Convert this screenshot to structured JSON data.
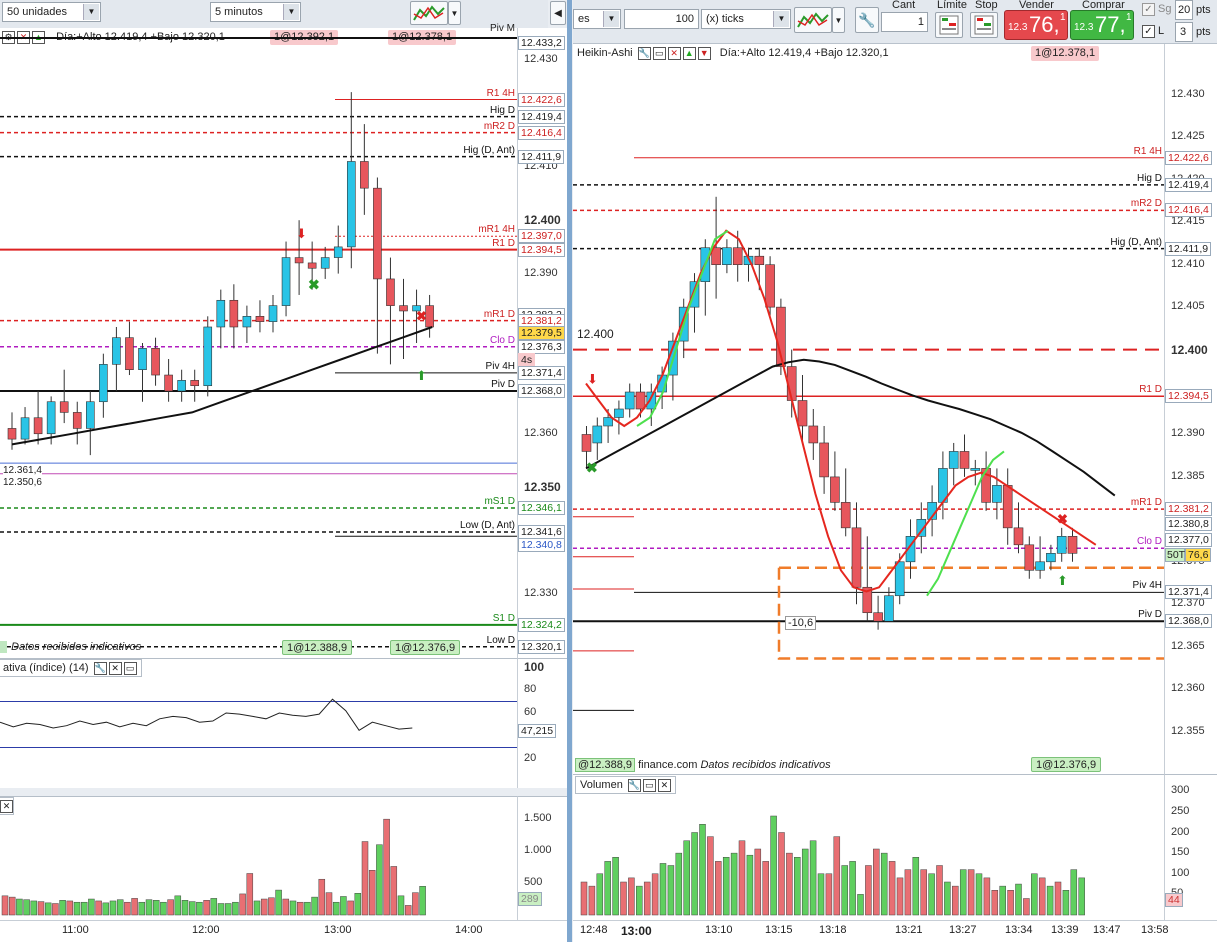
{
  "left_toolbar": {
    "quantity_select": "50 unidades",
    "timeframe_select": "5 minutos"
  },
  "right_toolbar": {
    "partial_select": "es",
    "ticks_value": "100",
    "ticks_select": "(x) ticks",
    "cant_label": "Cant",
    "cant_value": "1",
    "limit_label": "Límite",
    "stop_label": "Stop",
    "sell_label": "Vender",
    "sell_small": "12.3",
    "sell_big": "76,",
    "sell_frac": "1",
    "buy_label": "Comprar",
    "buy_small": "12.3",
    "buy_big": "77,",
    "buy_frac": "1",
    "sg_label": "Sg",
    "pts1_value": "20",
    "pts1_unit": "pts",
    "l_label": "L",
    "pts2_value": "3",
    "pts2_unit": "pts"
  },
  "left_chart": {
    "header_text": "Día:+Alto 12.419,4 +Bajo 12.320,1",
    "pill_a": "1@12.392,1",
    "pill_b": "1@12.378,1",
    "footer_note": "Datos recibidos indicativos",
    "pill_c": "1@12.388,9",
    "pill_d": "1@12.376,9",
    "small_top_label": "Piv M",
    "old_level_a": "12.361,4",
    "old_level_b": "12.350,6",
    "level_labels": [
      {
        "text": "R1 4H",
        "color": "#cc1f1f"
      },
      {
        "text": "Hig D",
        "color": "#111"
      },
      {
        "text": "mR2 D",
        "color": "#cc1f1f"
      },
      {
        "text": "Hig (D, Ant)",
        "color": "#111"
      },
      {
        "text": "mR1 4H",
        "color": "#cc1f1f"
      },
      {
        "text": "R1 D",
        "color": "#cc1f1f"
      },
      {
        "text": "mR1 D",
        "color": "#cc1f1f"
      },
      {
        "text": "Clo D",
        "color": "#b01cc0"
      },
      {
        "text": "Piv 4H",
        "color": "#111"
      },
      {
        "text": "Piv D",
        "color": "#111"
      },
      {
        "text": "mS1 D",
        "color": "#1a8a1a"
      },
      {
        "text": "Low (D, Ant)",
        "color": "#111"
      },
      {
        "text": "S1 D",
        "color": "#1a8a1a"
      },
      {
        "text": "Low D",
        "color": "#111"
      }
    ],
    "axis_ticks": [
      "12.430",
      "12.410",
      "12.400",
      "12.390",
      "12.360",
      "12.350",
      "12.330"
    ],
    "price_labels": [
      {
        "text": "12.433,2",
        "kind": "plain"
      },
      {
        "text": "12.422,6",
        "kind": "red"
      },
      {
        "text": "12.419,4",
        "kind": "plain"
      },
      {
        "text": "12.416,4",
        "kind": "red"
      },
      {
        "text": "12.411,9",
        "kind": "plain"
      },
      {
        "text": "12.397,0",
        "kind": "red"
      },
      {
        "text": "12.394,5",
        "kind": "red"
      },
      {
        "text": "12.382,2",
        "kind": "plain"
      },
      {
        "text": "12.381,2",
        "kind": "red"
      },
      {
        "text": "12.379,5",
        "kind": "yellow"
      },
      {
        "text": "12.376,3",
        "kind": "plain"
      },
      {
        "text": "4s",
        "kind": "pink"
      },
      {
        "text": "12.371,4",
        "kind": "plain"
      },
      {
        "text": "12.368,0",
        "kind": "plain"
      },
      {
        "text": "12.346,1",
        "kind": "green"
      },
      {
        "text": "12.341,6",
        "kind": "plain"
      },
      {
        "text": "12.340,8",
        "kind": "blue"
      },
      {
        "text": "12.324,2",
        "kind": "green"
      },
      {
        "text": "12.320,1",
        "kind": "plain"
      }
    ],
    "rsi_header": "ativa (índice) (14)",
    "rsi_ticks": [
      "100",
      "80",
      "60",
      "20"
    ],
    "rsi_value": "47,215",
    "vol_ticks": [
      "1.500",
      "1.000",
      "500"
    ],
    "vol_value": "289",
    "x_labels": [
      "11:00",
      "12:00",
      "13:00",
      "14:00"
    ]
  },
  "right_chart": {
    "chart_type": "Heikin-Ashi",
    "header_text": "Día:+Alto 12.419,4 +Bajo 12.320,1",
    "pill_a": "1@12.378,1",
    "round_level": "12.400",
    "box_label": "-10,6",
    "footer_prefix": "@12.388,9",
    "footer_note": "Datos recibidos indicativos",
    "footer_site": "finance.com",
    "pill_b": "1@12.376,9",
    "level_labels": [
      {
        "text": "R1 4H",
        "color": "#cc1f1f"
      },
      {
        "text": "Hig D",
        "color": "#111"
      },
      {
        "text": "mR2 D",
        "color": "#cc1f1f"
      },
      {
        "text": "Hig (D, Ant)",
        "color": "#111"
      },
      {
        "text": "R1 D",
        "color": "#cc1f1f"
      },
      {
        "text": "mR1 D",
        "color": "#cc1f1f"
      },
      {
        "text": "Clo D",
        "color": "#b01cc0"
      },
      {
        "text": "Piv 4H",
        "color": "#111"
      },
      {
        "text": "Piv D",
        "color": "#111"
      }
    ],
    "axis_ticks": [
      "12.430",
      "12.425",
      "12.420",
      "12.415",
      "12.410",
      "12.405",
      "12.400",
      "12.390",
      "12.385",
      "12.375",
      "12.370",
      "12.365",
      "12.360",
      "12.355"
    ],
    "price_labels": [
      {
        "text": "12.422,6",
        "kind": "red"
      },
      {
        "text": "12.419,4",
        "kind": "plain"
      },
      {
        "text": "12.416,4",
        "kind": "red"
      },
      {
        "text": "12.411,9",
        "kind": "plain"
      },
      {
        "text": "12.394,5",
        "kind": "red"
      },
      {
        "text": "12.381,2",
        "kind": "red"
      },
      {
        "text": "12.380,8",
        "kind": "plain"
      },
      {
        "text": "12.377,0",
        "kind": "plain"
      },
      {
        "text": "50T",
        "kind": "green"
      },
      {
        "text": "76,6",
        "kind": "yellow"
      },
      {
        "text": "12.371,4",
        "kind": "plain"
      },
      {
        "text": "12.368,0",
        "kind": "plain"
      }
    ],
    "vol_header": "Volumen",
    "vol_ticks": [
      "300",
      "250",
      "200",
      "150",
      "100",
      "50"
    ],
    "vol_value": "44",
    "x_labels": [
      "12:48",
      "13:00",
      "13:10",
      "13:15",
      "13:18",
      "13:21",
      "13:27",
      "13:34",
      "13:39",
      "13:47",
      "13:58"
    ]
  },
  "chart_data": [
    {
      "type": "candlestick",
      "title": "",
      "timeframe": "5 minutos",
      "x_labels": [
        "11:00",
        "12:00",
        "13:00",
        "14:00"
      ],
      "ylim": [
        12318,
        12436
      ],
      "candles": [
        [
          12361,
          12364,
          12357,
          12359
        ],
        [
          12359,
          12365,
          12358,
          12363
        ],
        [
          12363,
          12368,
          12358,
          12360
        ],
        [
          12360,
          12367,
          12358,
          12366
        ],
        [
          12366,
          12372,
          12362,
          12364
        ],
        [
          12364,
          12366,
          12358,
          12361
        ],
        [
          12361,
          12368,
          12356,
          12366
        ],
        [
          12366,
          12375,
          12363,
          12373
        ],
        [
          12373,
          12380,
          12368,
          12378
        ],
        [
          12378,
          12381,
          12371,
          12372
        ],
        [
          12372,
          12377,
          12366,
          12376
        ],
        [
          12376,
          12378,
          12369,
          12371
        ],
        [
          12371,
          12374,
          12366,
          12368
        ],
        [
          12368,
          12372,
          12366,
          12370
        ],
        [
          12370,
          12372,
          12366,
          12369
        ],
        [
          12369,
          12382,
          12367,
          12380
        ],
        [
          12380,
          12387,
          12376,
          12385
        ],
        [
          12385,
          12388,
          12376,
          12380
        ],
        [
          12380,
          12384,
          12377,
          12382
        ],
        [
          12382,
          12385,
          12379,
          12381
        ],
        [
          12381,
          12386,
          12379,
          12384
        ],
        [
          12384,
          12396,
          12382,
          12393
        ],
        [
          12393,
          12400,
          12386,
          12392
        ],
        [
          12392,
          12396,
          12387,
          12391
        ],
        [
          12391,
          12395,
          12389,
          12393
        ],
        [
          12393,
          12399,
          12390,
          12395
        ],
        [
          12395,
          12424,
          12391,
          12411
        ],
        [
          12411,
          12418,
          12401,
          12406
        ],
        [
          12406,
          12408,
          12375,
          12389
        ],
        [
          12389,
          12393,
          12373,
          12384
        ],
        [
          12384,
          12389,
          12374,
          12383
        ],
        [
          12383,
          12387,
          12377,
          12384
        ],
        [
          12384,
          12386,
          12378,
          12380
        ]
      ],
      "moving_average": [
        12358,
        12359,
        12360,
        12361,
        12362,
        12363,
        12364,
        12366,
        12368,
        12370,
        12372,
        12374,
        12376,
        12378,
        12380
      ],
      "rsi": {
        "name": "ativa (índice) (14)",
        "last": 47.215
      },
      "volume": {
        "last": 289,
        "ylim": [
          0,
          1800
        ]
      }
    },
    {
      "type": "candlestick",
      "title": "Heikin-Ashi",
      "timeframe": "100 (x) ticks",
      "x_labels": [
        "12:48",
        "13:00",
        "13:10",
        "13:15",
        "13:18",
        "13:21",
        "13:27",
        "13:34",
        "13:39",
        "13:47",
        "13:58"
      ],
      "ylim": [
        12350,
        12436
      ],
      "levels": [
        {
          "name": "R1 4H",
          "value": 12422.6
        },
        {
          "name": "Hig D",
          "value": 12419.4
        },
        {
          "name": "mR2 D",
          "value": 12416.4
        },
        {
          "name": "Hig (D, Ant)",
          "value": 12411.9
        },
        {
          "name": "12.400",
          "value": 12400
        },
        {
          "name": "R1 D",
          "value": 12394.5
        },
        {
          "name": "mR1 D",
          "value": 12381.2
        },
        {
          "name": "Clo D",
          "value": 12376.6
        },
        {
          "name": "Piv 4H",
          "value": 12371.4
        },
        {
          "name": "Piv D",
          "value": 12368.0
        }
      ],
      "volume": {
        "last": 44,
        "ylim": [
          0,
          320
        ]
      }
    }
  ]
}
